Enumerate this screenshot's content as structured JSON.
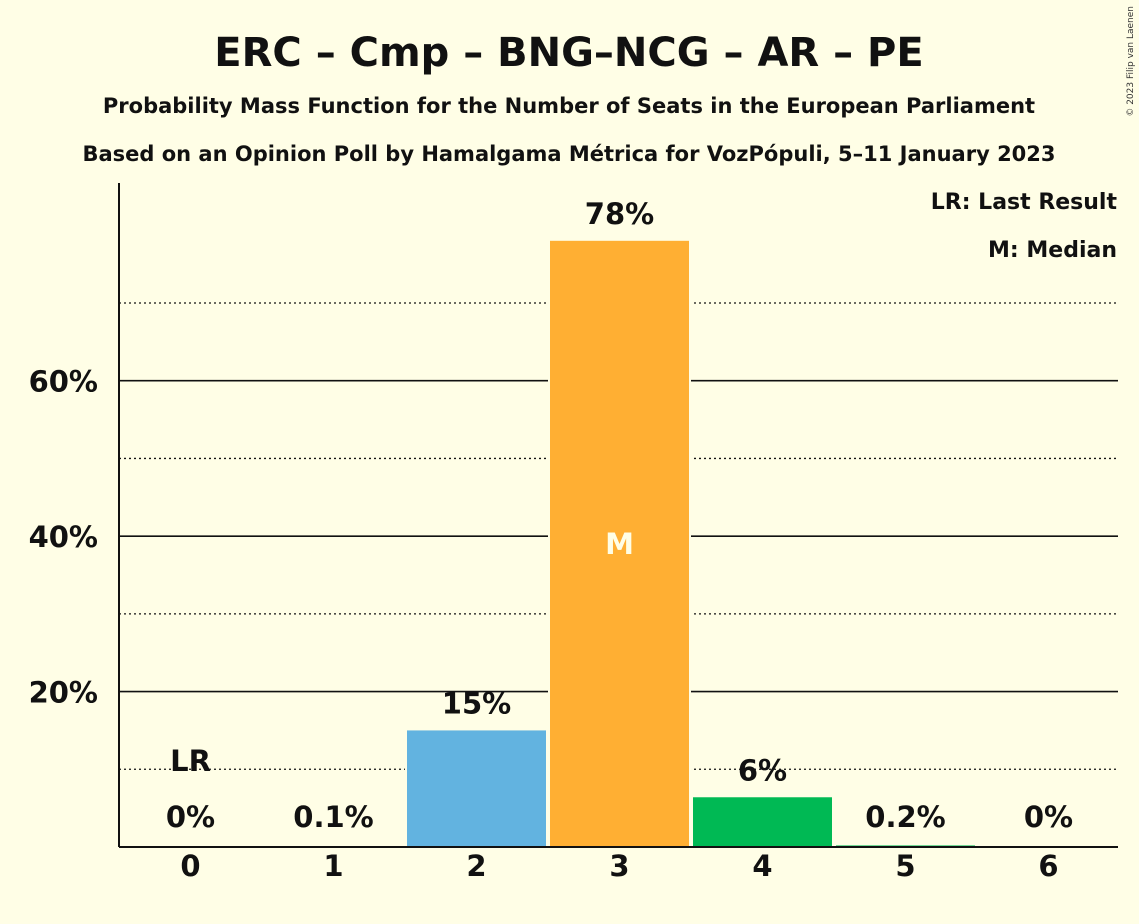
{
  "chart_data": {
    "type": "bar",
    "title": "ERC – Cmp – BNG–NCG – AR – PE",
    "subtitle": "Probability Mass Function for the Number of Seats in the European Parliament",
    "subtitle2": "Based on an Opinion Poll by Hamalgama Métrica for VozPópuli, 5–11 January 2023",
    "categories": [
      "0",
      "1",
      "2",
      "3",
      "4",
      "5",
      "6"
    ],
    "values": [
      0,
      0.1,
      15,
      78,
      6.4,
      0.2,
      0
    ],
    "data_labels": [
      "0%",
      "0.1%",
      "15%",
      "78%",
      "6%",
      "0.2%",
      "0%"
    ],
    "bar_colors": [
      "#62B3E0",
      "#62B3E0",
      "#62B3E0",
      "#FFAF33",
      "#00B954",
      "#00B954",
      "#00B954"
    ],
    "ylim": [
      0,
      85
    ],
    "yticks": [
      20,
      40,
      60
    ],
    "ytick_labels": [
      "20%",
      "40%",
      "60%"
    ],
    "minor_gridlines": [
      10,
      30,
      50,
      70
    ],
    "grid": true,
    "last_result_seat": "0",
    "last_result_marker": "LR",
    "median_seat": "3",
    "median_marker": "M",
    "legend": {
      "placement": "top-right",
      "entries": [
        "LR: Last Result",
        "M: Median"
      ]
    },
    "copyright": "© 2023 Filip van Laenen"
  }
}
